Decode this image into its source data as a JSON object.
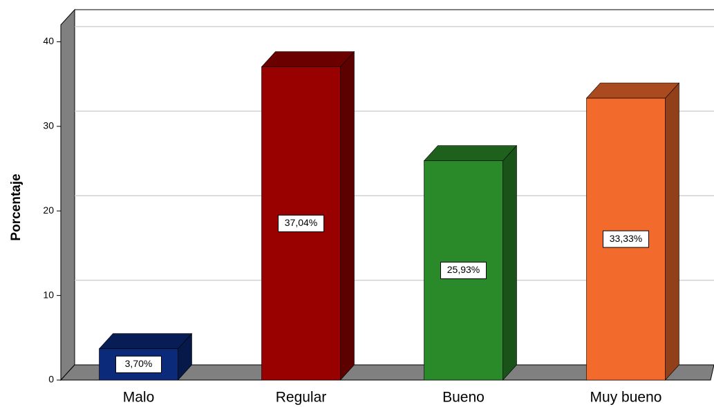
{
  "chart_data": {
    "type": "bar3d",
    "y_label": "Porcentaje",
    "categories": [
      "Malo",
      "Regular",
      "Bueno",
      "Muy bueno"
    ],
    "values": [
      3.7,
      37.04,
      25.93,
      33.33
    ],
    "value_labels": [
      "3,70%",
      "37,04%",
      "25,93%",
      "33,33%"
    ],
    "colors": [
      "#0b2a7a",
      "#990000",
      "#2a8a2a",
      "#f26a2c"
    ],
    "ylim": [
      0,
      42
    ],
    "yticks": [
      0,
      10,
      20,
      30,
      40
    ],
    "grid": true
  }
}
